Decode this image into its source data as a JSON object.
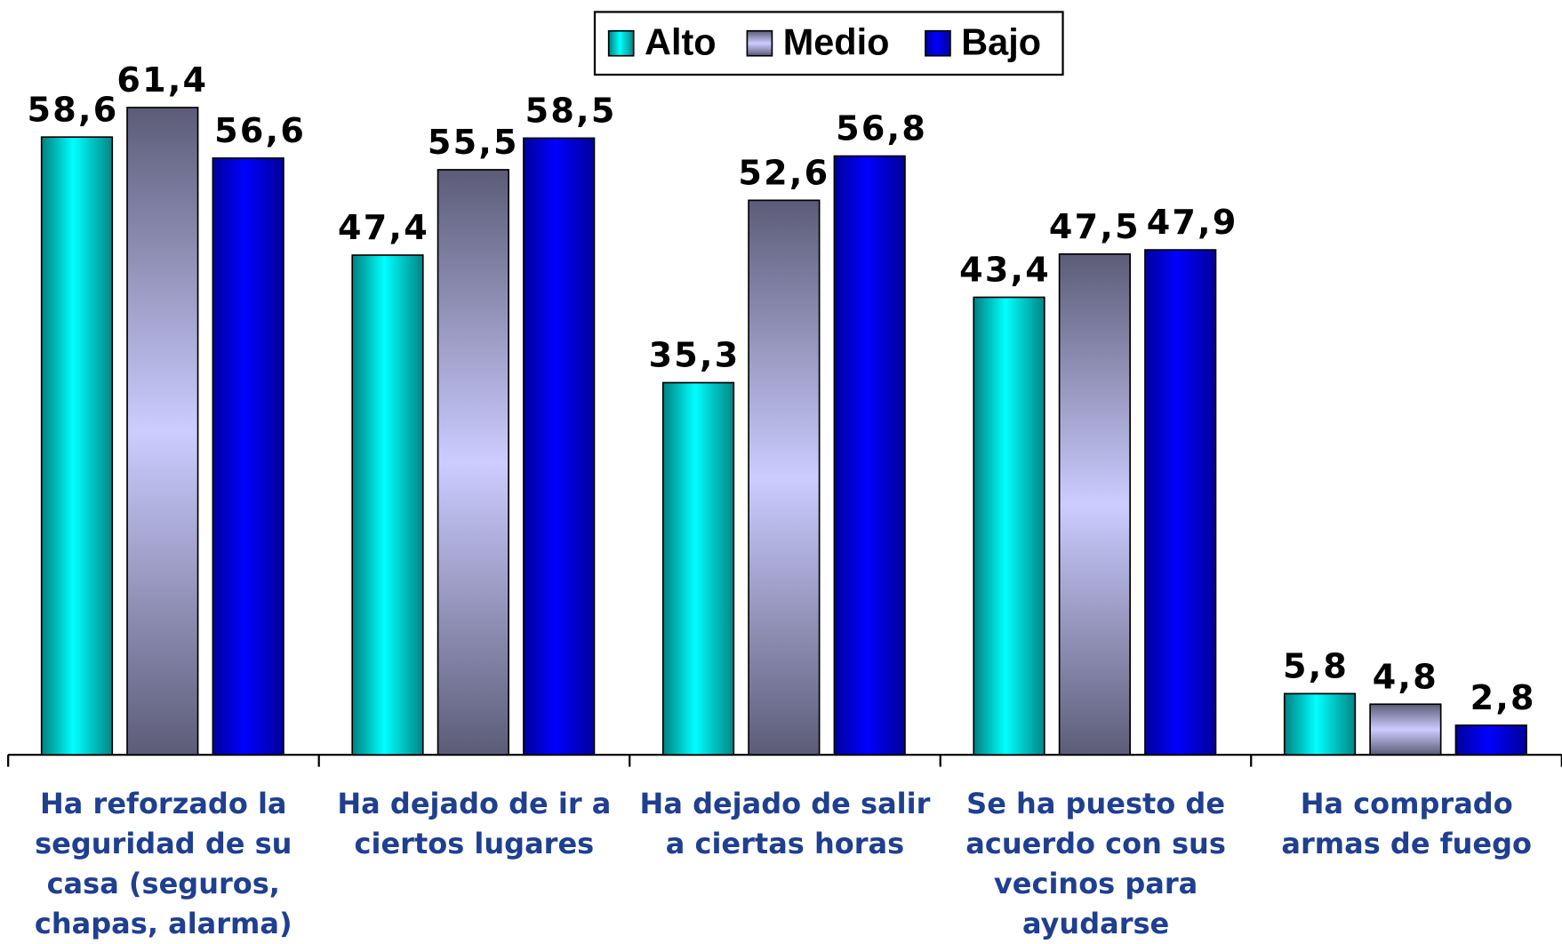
{
  "chart_data": {
    "type": "bar",
    "categories": [
      "Ha reforzado la\nseguridad de su\ncasa (seguros,\nchapas, alarma)",
      "Ha dejado de ir a\nciertos lugares",
      "Ha dejado de salir\na ciertas horas",
      "Se ha puesto de\nacuerdo con sus\nvecinos para\nayudarse",
      "Ha comprado\narmas de fuego"
    ],
    "series": [
      {
        "name": "Alto",
        "color": "#00e8e8",
        "values": [
          58.6,
          47.4,
          35.3,
          43.4,
          5.8
        ],
        "value_labels": [
          "58,6",
          "47,4",
          "35,3",
          "43,4",
          "5,8"
        ]
      },
      {
        "name": "Medio",
        "color": "#ccccff",
        "values": [
          61.4,
          55.5,
          52.6,
          47.5,
          4.8
        ],
        "value_labels": [
          "61,4",
          "55,5",
          "52,6",
          "47,5",
          "4,8"
        ]
      },
      {
        "name": "Bajo",
        "color": "#0000ee",
        "values": [
          56.6,
          58.5,
          56.8,
          47.9,
          2.8
        ],
        "value_labels": [
          "56,6",
          "58,5",
          "56,8",
          "47,9",
          "2,8"
        ]
      }
    ],
    "legend": "top"
  }
}
